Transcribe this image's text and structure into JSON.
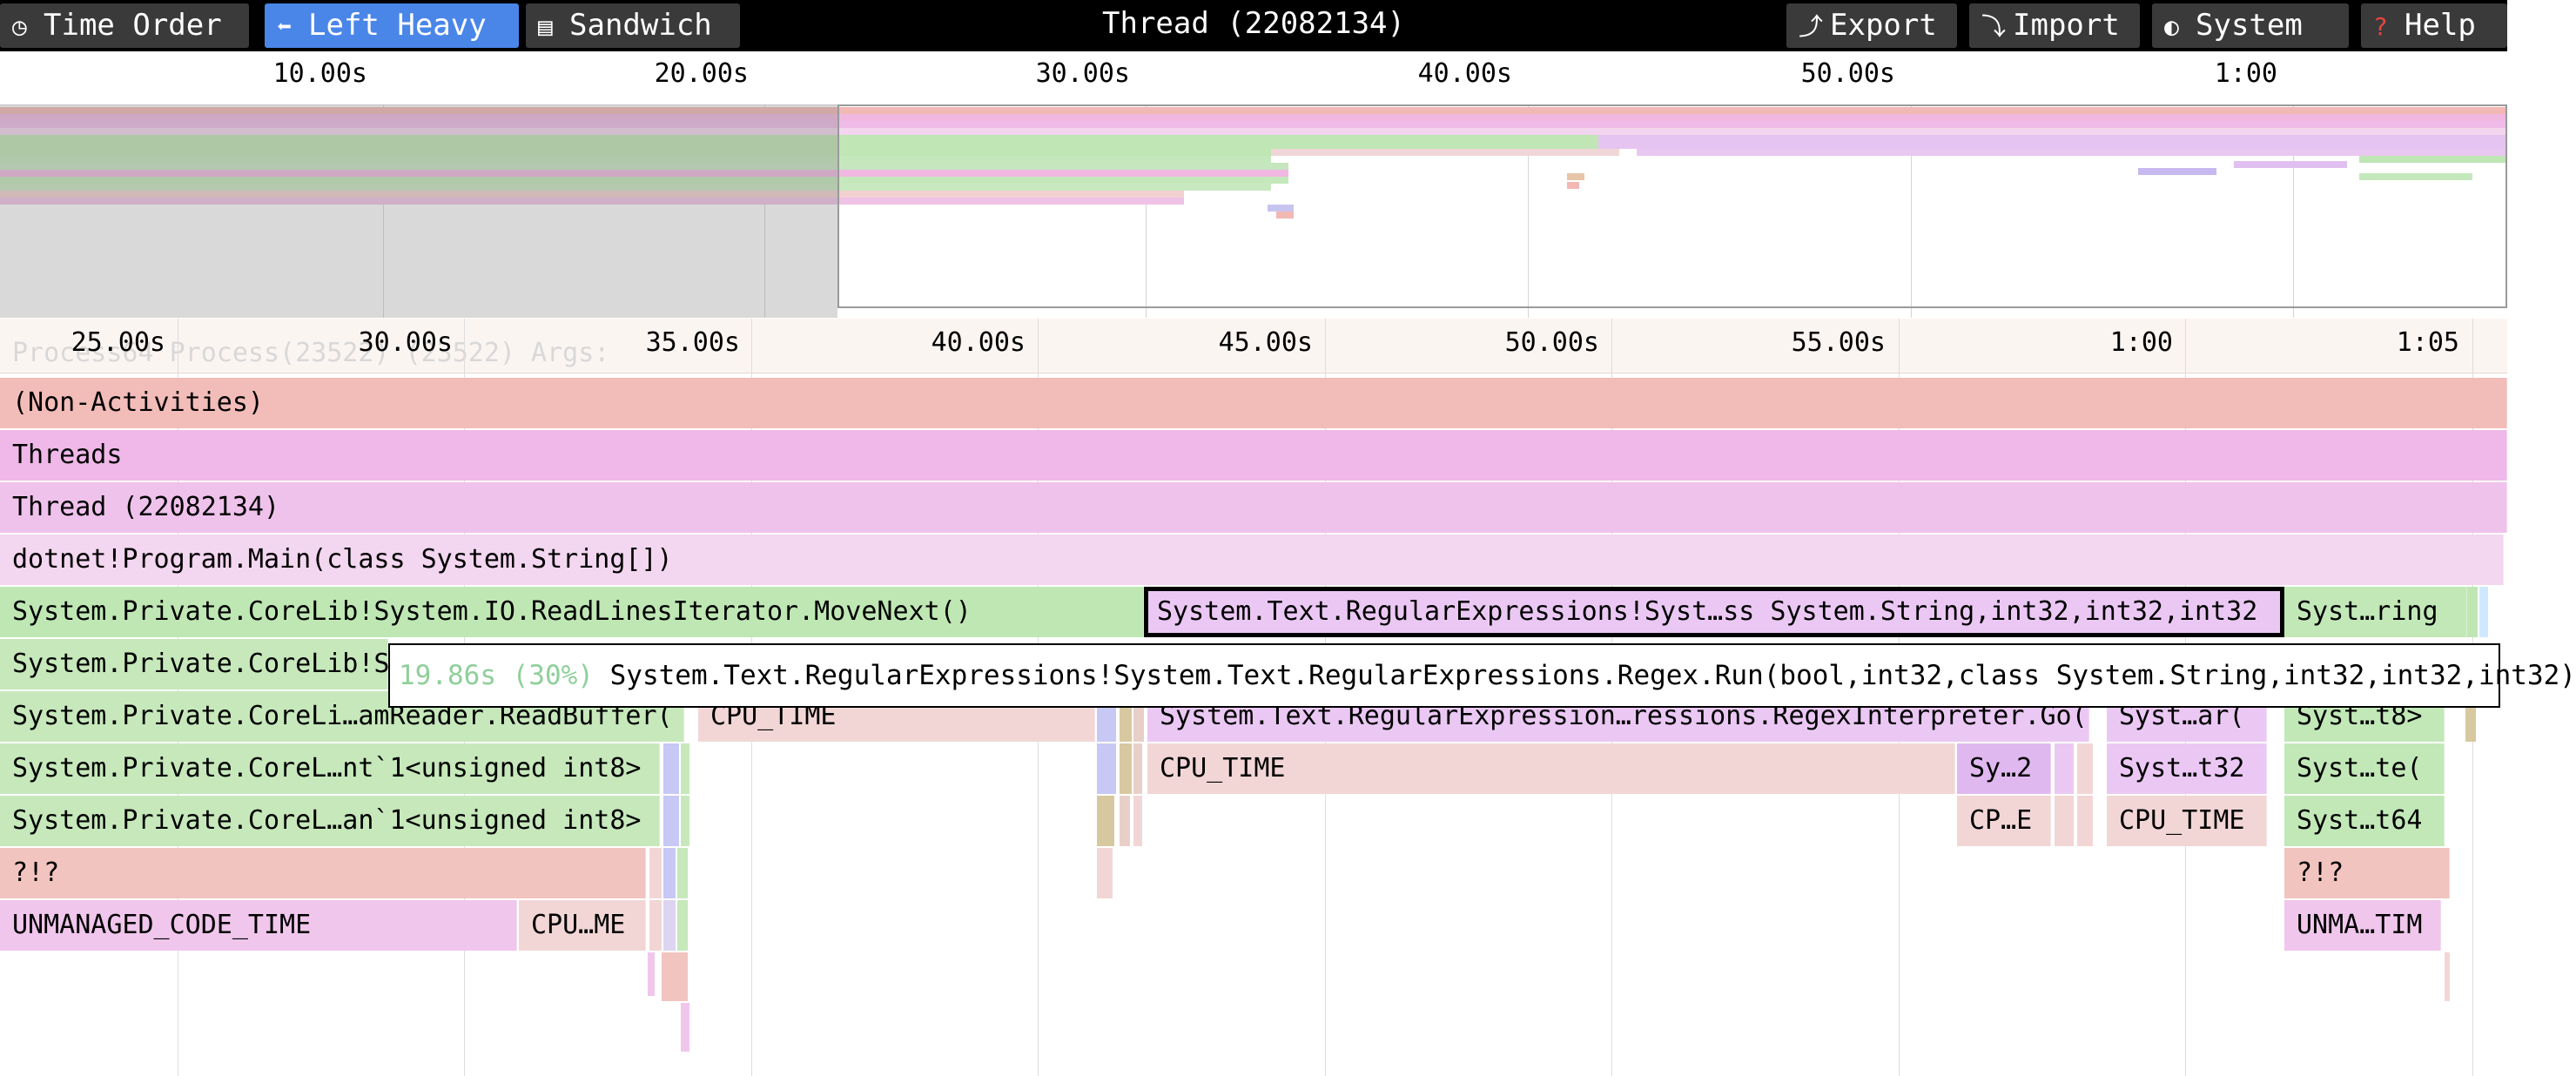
{
  "toolbar": {
    "tabs": [
      {
        "label": "Time Order",
        "icon": "clock-icon",
        "icon_glyph": "◷",
        "active": false
      },
      {
        "label": "Left Heavy",
        "icon": "arrow-left-icon",
        "icon_glyph": "⬅",
        "active": true
      },
      {
        "label": "Sandwich",
        "icon": "sandwich-icon",
        "icon_glyph": "▤",
        "active": false
      }
    ],
    "title": "Thread (22082134)",
    "actions": [
      {
        "label": "Export",
        "icon": "export-icon",
        "icon_glyph": "⤴"
      },
      {
        "label": "Import",
        "icon": "import-icon",
        "icon_glyph": "⤵"
      },
      {
        "label": "System",
        "icon": "palette-icon",
        "icon_glyph": "◐"
      },
      {
        "label": "Help",
        "icon": "help-icon",
        "icon_glyph": "?"
      }
    ]
  },
  "minimap": {
    "tick_labels": [
      "10.00s",
      "20.00s",
      "30.00s",
      "40.00s",
      "50.00s",
      "1:00"
    ]
  },
  "main": {
    "tick_labels": [
      "25.00s",
      "30.00s",
      "35.00s",
      "40.00s",
      "45.00s",
      "50.00s",
      "55.00s",
      "1:00",
      "1:05"
    ],
    "process_label": "Process64 Process(23522) (23522) Args:",
    "frames": {
      "non_activities": "(Non-Activities)",
      "threads": "Threads",
      "thread": "Thread (22082134)",
      "program_main": "dotnet!Program.Main(class System.String[])",
      "readlines_movenext": "System.Private.CoreLib!System.IO.ReadLinesIterator.MoveNext()",
      "regex_selected": "System.Text.RegularExpressions!Syst…ss System.String,int32,int32,int32",
      "syst_ring": "Syst…ring",
      "corelib_s": "System.Private.CoreLib!S",
      "readbuffer": "System.Private.CoreLi…amReader.ReadBuffer(",
      "cpu_time_a": "CPU_TIME",
      "regex_interpreter": "System.Text.RegularExpression…ressions.RegexInterpreter.Go(",
      "syst_ar": "Syst…ar(",
      "syst_t8": "Syst…t8>",
      "corel_nt": "System.Private.CoreL…nt`1<unsigned int8>",
      "cpu_time_b": "CPU_TIME",
      "sy_2": "Sy…2",
      "syst_t32": "Syst…t32",
      "syst_te": "Syst…te(",
      "corel_an": "System.Private.CoreL…an`1<unsigned int8>",
      "cp_e": "CP…E",
      "cpu_time_c": "CPU_TIME",
      "syst_t64": "Syst…t64",
      "qmark_a": "?!?",
      "qmark_b": "?!?",
      "unmanaged": "UNMANAGED_CODE_TIME",
      "cpu_me": "CPU…ME",
      "unma_tim": "UNMA…TIM"
    }
  },
  "tooltip": {
    "stat": "19.86s (30%)",
    "function": "System.Text.RegularExpressions!System.Text.RegularExpressions.Regex.Run(bool,int32,class System.String,int32,int32,int32)"
  }
}
